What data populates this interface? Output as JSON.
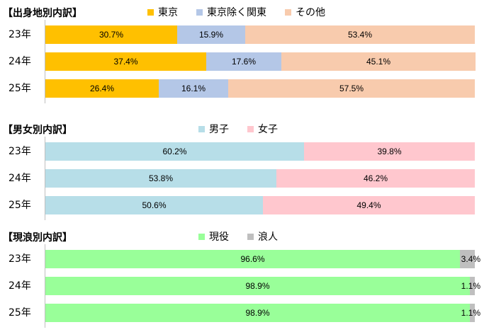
{
  "chart_data": [
    {
      "type": "bar",
      "orientation": "horizontal",
      "stacked": "percent",
      "title": "【出身地別内訳】",
      "categories": [
        "23年",
        "24年",
        "25年"
      ],
      "legend_position": "top",
      "series": [
        {
          "name": "東京",
          "color": "#ffc000",
          "values": [
            30.7,
            37.4,
            26.4
          ],
          "labels": [
            "30.7%",
            "37.4%",
            "26.4%"
          ]
        },
        {
          "name": "東京除く関東",
          "color": "#b4c7e7",
          "values": [
            15.9,
            17.6,
            16.1
          ],
          "labels": [
            "15.9%",
            "17.6%",
            "16.1%"
          ]
        },
        {
          "name": "その他",
          "color": "#f8cbad",
          "values": [
            53.4,
            45.1,
            57.5
          ],
          "labels": [
            "53.4%",
            "45.1%",
            "57.5%"
          ]
        }
      ]
    },
    {
      "type": "bar",
      "orientation": "horizontal",
      "stacked": "percent",
      "title": "【男女別内訳】",
      "categories": [
        "23年",
        "24年",
        "25年"
      ],
      "legend_position": "top",
      "series": [
        {
          "name": "男子",
          "color": "#b7dee8",
          "values": [
            60.2,
            53.8,
            50.6
          ],
          "labels": [
            "60.2%",
            "53.8%",
            "50.6%"
          ]
        },
        {
          "name": "女子",
          "color": "#ffc7ce",
          "values": [
            39.8,
            46.2,
            49.4
          ],
          "labels": [
            "39.8%",
            "46.2%",
            "49.4%"
          ]
        }
      ]
    },
    {
      "type": "bar",
      "orientation": "horizontal",
      "stacked": "percent",
      "title": "【現浪別内訳】",
      "categories": [
        "23年",
        "24年",
        "25年"
      ],
      "legend_position": "top",
      "series": [
        {
          "name": "現役",
          "color": "#99ff99",
          "values": [
            96.6,
            98.9,
            98.9
          ],
          "labels": [
            "96.6%",
            "98.9%",
            "98.9%"
          ]
        },
        {
          "name": "浪人",
          "color": "#bfbfbf",
          "values": [
            3.4,
            1.1,
            1.1
          ],
          "labels": [
            "3.4%",
            "1.1%",
            "1.1%"
          ]
        }
      ]
    }
  ]
}
